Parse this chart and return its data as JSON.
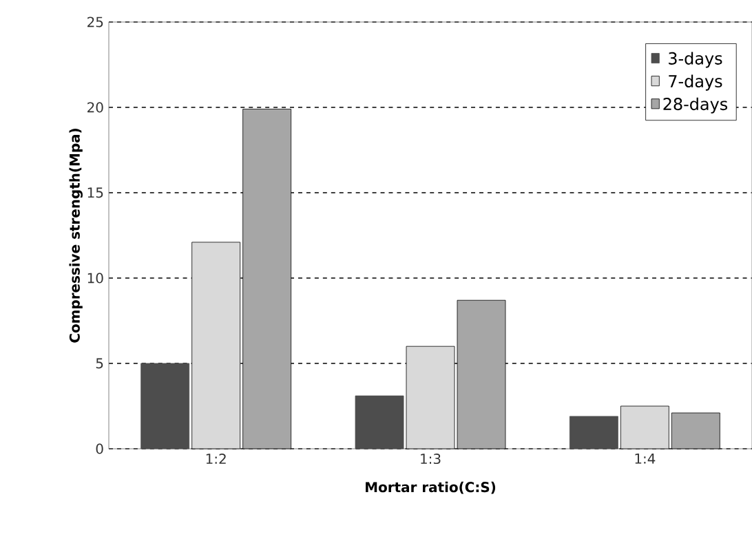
{
  "chart_data": {
    "type": "bar",
    "xlabel": "Mortar ratio(C:S)",
    "ylabel": "Compressive strength(Mpa)",
    "categories": [
      "1:2",
      "1:3",
      "1:4"
    ],
    "series": [
      {
        "name": "3-days",
        "color": "#4d4d4d",
        "values": [
          5.0,
          3.1,
          1.9
        ]
      },
      {
        "name": "7-days",
        "color": "#d9d9d9",
        "values": [
          12.1,
          6.0,
          2.5
        ]
      },
      {
        "name": "28-days",
        "color": "#a6a6a6",
        "values": [
          19.9,
          8.7,
          2.1
        ]
      }
    ],
    "ylim": [
      0,
      25
    ],
    "yticks": [
      0,
      5,
      10,
      15,
      20,
      25
    ],
    "grid": "y",
    "legend": "top right"
  }
}
